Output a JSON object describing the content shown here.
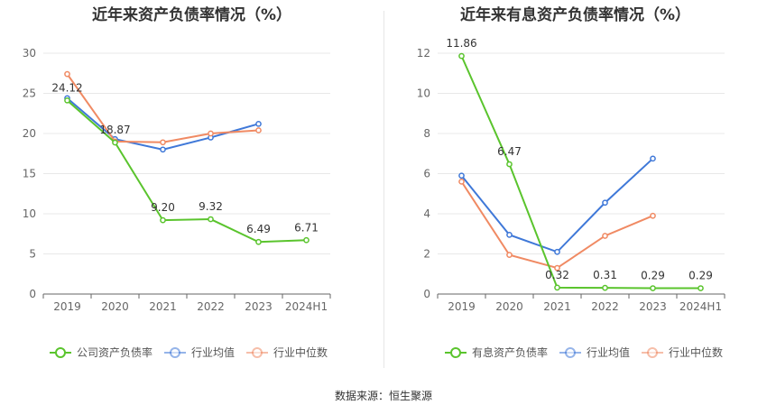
{
  "source": "数据来源：恒生聚源",
  "colors": {
    "green": "#5ac42d",
    "blue": "#3f78d8",
    "orange": "#f08a63",
    "grid": "#e8e8e8",
    "axis": "#666666"
  },
  "chart_data": [
    {
      "type": "line",
      "title": "近年来资产负债率情况（%）",
      "categories": [
        "2019",
        "2020",
        "2021",
        "2022",
        "2023",
        "2024H1"
      ],
      "ylim": [
        0,
        30
      ],
      "yticks": [
        0,
        5,
        10,
        15,
        20,
        25,
        30
      ],
      "grid": true,
      "legend_position": "bottom",
      "series": [
        {
          "name": "公司资产负债率",
          "color": "#5ac42d",
          "labeled": true,
          "values": [
            24.12,
            18.87,
            9.2,
            9.32,
            6.49,
            6.71
          ],
          "labels": [
            "24.12",
            "18.87",
            "9.20",
            "9.32",
            "6.49",
            "6.71"
          ]
        },
        {
          "name": "行业均值",
          "color": "#3f78d8",
          "labeled": false,
          "values": [
            24.4,
            19.3,
            18.0,
            19.5,
            21.2,
            null
          ]
        },
        {
          "name": "行业中位数",
          "color": "#f08a63",
          "labeled": false,
          "values": [
            27.4,
            19.0,
            18.9,
            20.0,
            20.4,
            null
          ]
        }
      ]
    },
    {
      "type": "line",
      "title": "近年来有息资产负债率情况（%）",
      "categories": [
        "2019",
        "2020",
        "2021",
        "2022",
        "2023",
        "2024H1"
      ],
      "ylim": [
        0,
        12
      ],
      "yticks": [
        0,
        2,
        4,
        6,
        8,
        10,
        12
      ],
      "grid": true,
      "legend_position": "bottom",
      "series": [
        {
          "name": "有息资产负债率",
          "color": "#5ac42d",
          "labeled": true,
          "values": [
            11.86,
            6.47,
            0.32,
            0.31,
            0.29,
            0.29
          ],
          "labels": [
            "11.86",
            "6.47",
            "0.32",
            "0.31",
            "0.29",
            "0.29"
          ]
        },
        {
          "name": "行业均值",
          "color": "#3f78d8",
          "labeled": false,
          "values": [
            5.9,
            2.95,
            2.1,
            4.55,
            6.75,
            null
          ]
        },
        {
          "name": "行业中位数",
          "color": "#f08a63",
          "labeled": false,
          "values": [
            5.6,
            1.95,
            1.3,
            2.9,
            3.9,
            null
          ]
        }
      ]
    }
  ]
}
